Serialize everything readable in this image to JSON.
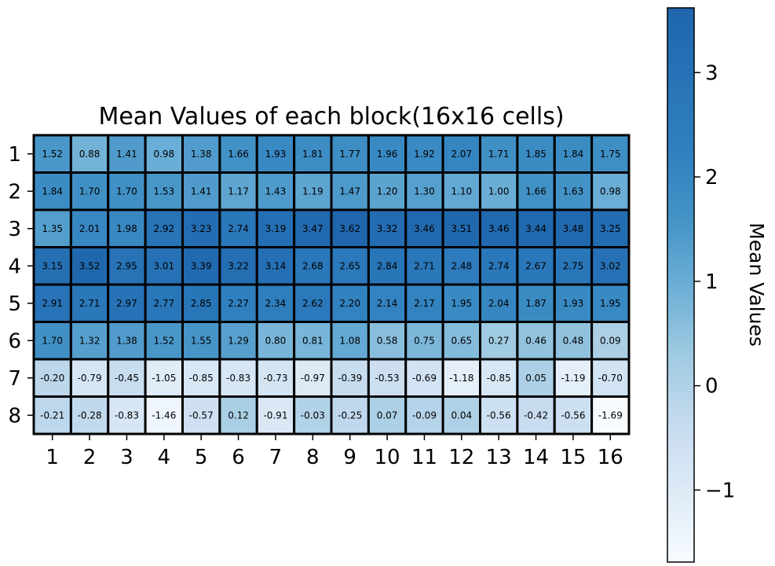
{
  "chart_data": {
    "type": "heatmap",
    "title": "Mean Values of each block(16x16 cells)",
    "x_ticks": [
      "1",
      "2",
      "3",
      "4",
      "5",
      "6",
      "7",
      "8",
      "9",
      "10",
      "11",
      "12",
      "13",
      "14",
      "15",
      "16"
    ],
    "y_ticks": [
      "1",
      "2",
      "3",
      "4",
      "5",
      "6",
      "7",
      "8"
    ],
    "values": [
      [
        1.52,
        0.88,
        1.41,
        0.98,
        1.38,
        1.66,
        1.93,
        1.81,
        1.77,
        1.96,
        1.92,
        2.07,
        1.71,
        1.85,
        1.84,
        1.75
      ],
      [
        1.84,
        1.7,
        1.7,
        1.53,
        1.41,
        1.17,
        1.43,
        1.19,
        1.47,
        1.2,
        1.3,
        1.1,
        1.0,
        1.66,
        1.63,
        0.98
      ],
      [
        1.35,
        2.01,
        1.98,
        2.92,
        3.23,
        2.74,
        3.19,
        3.47,
        3.62,
        3.32,
        3.46,
        3.51,
        3.46,
        3.44,
        3.48,
        3.25
      ],
      [
        3.15,
        3.52,
        2.95,
        3.01,
        3.39,
        3.22,
        3.14,
        2.68,
        2.65,
        2.84,
        2.71,
        2.48,
        2.74,
        2.67,
        2.75,
        3.02
      ],
      [
        2.91,
        2.71,
        2.97,
        2.77,
        2.85,
        2.27,
        2.34,
        2.62,
        2.2,
        2.14,
        2.17,
        1.95,
        2.04,
        1.87,
        1.93,
        1.95
      ],
      [
        1.7,
        1.32,
        1.38,
        1.52,
        1.55,
        1.29,
        0.8,
        0.81,
        1.08,
        0.58,
        0.75,
        0.65,
        0.27,
        0.46,
        0.48,
        0.09
      ],
      [
        -0.2,
        -0.79,
        -0.45,
        -1.05,
        -0.85,
        -0.83,
        -0.73,
        -0.97,
        -0.39,
        -0.53,
        -0.69,
        -1.18,
        -0.85,
        0.05,
        -1.19,
        -0.7
      ],
      [
        -0.21,
        -0.28,
        -0.83,
        -1.46,
        -0.57,
        0.12,
        -0.91,
        -0.03,
        -0.25,
        0.07,
        -0.09,
        0.04,
        -0.56,
        -0.42,
        -0.56,
        -1.69
      ]
    ],
    "colormap": {
      "name": "Blues",
      "low_color": "#f7fbff",
      "mid_color": "#6baed6",
      "high_color": "#1f66ad"
    },
    "vmin": -1.69,
    "vmax": 3.62,
    "colorbar": {
      "label": "Mean Values",
      "ticks": [
        3,
        2,
        1,
        0,
        -1
      ],
      "tick_labels": [
        "3",
        "2",
        "1",
        "0",
        "−1"
      ]
    },
    "grid": false,
    "cell_borders": true
  }
}
